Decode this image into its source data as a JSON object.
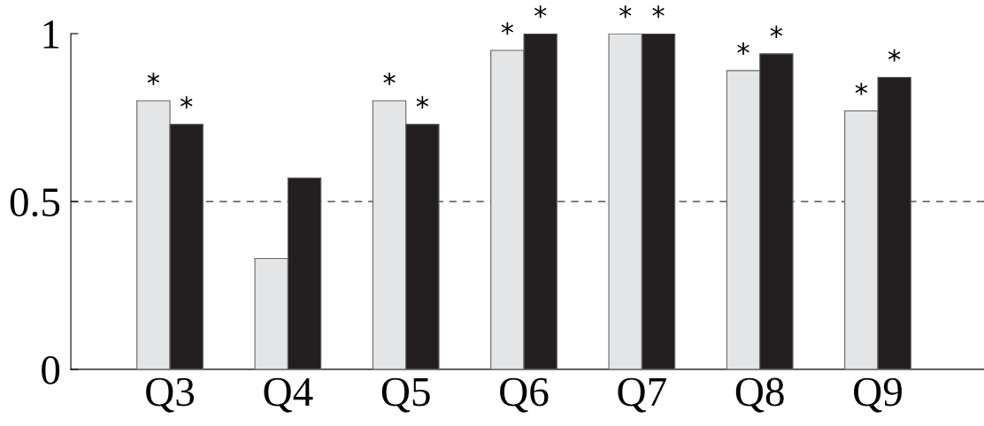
{
  "chart_data": {
    "type": "bar",
    "categories": [
      "Q3",
      "Q4",
      "Q5",
      "Q6",
      "Q7",
      "Q8",
      "Q9"
    ],
    "series": [
      {
        "color": "#e4e5e7",
        "values": [
          0.8,
          0.33,
          0.8,
          0.95,
          1.0,
          0.89,
          0.77
        ],
        "value_labels": [
          "*",
          null,
          "*",
          "*",
          "*",
          "*",
          "*"
        ]
      },
      {
        "color": "#231f20",
        "values": [
          0.73,
          0.57,
          0.73,
          1.0,
          1.0,
          0.94,
          0.87
        ],
        "value_labels": [
          "*",
          null,
          "*",
          "*",
          "*",
          "*",
          "*"
        ]
      }
    ],
    "ylim": [
      0,
      1
    ],
    "yticks": [
      0,
      0.5,
      1
    ],
    "ref_lines": [
      {
        "axis": "y",
        "value": 0.5,
        "color": "#555555",
        "line_style": "dashed"
      }
    ],
    "grid": false,
    "legend": false
  }
}
